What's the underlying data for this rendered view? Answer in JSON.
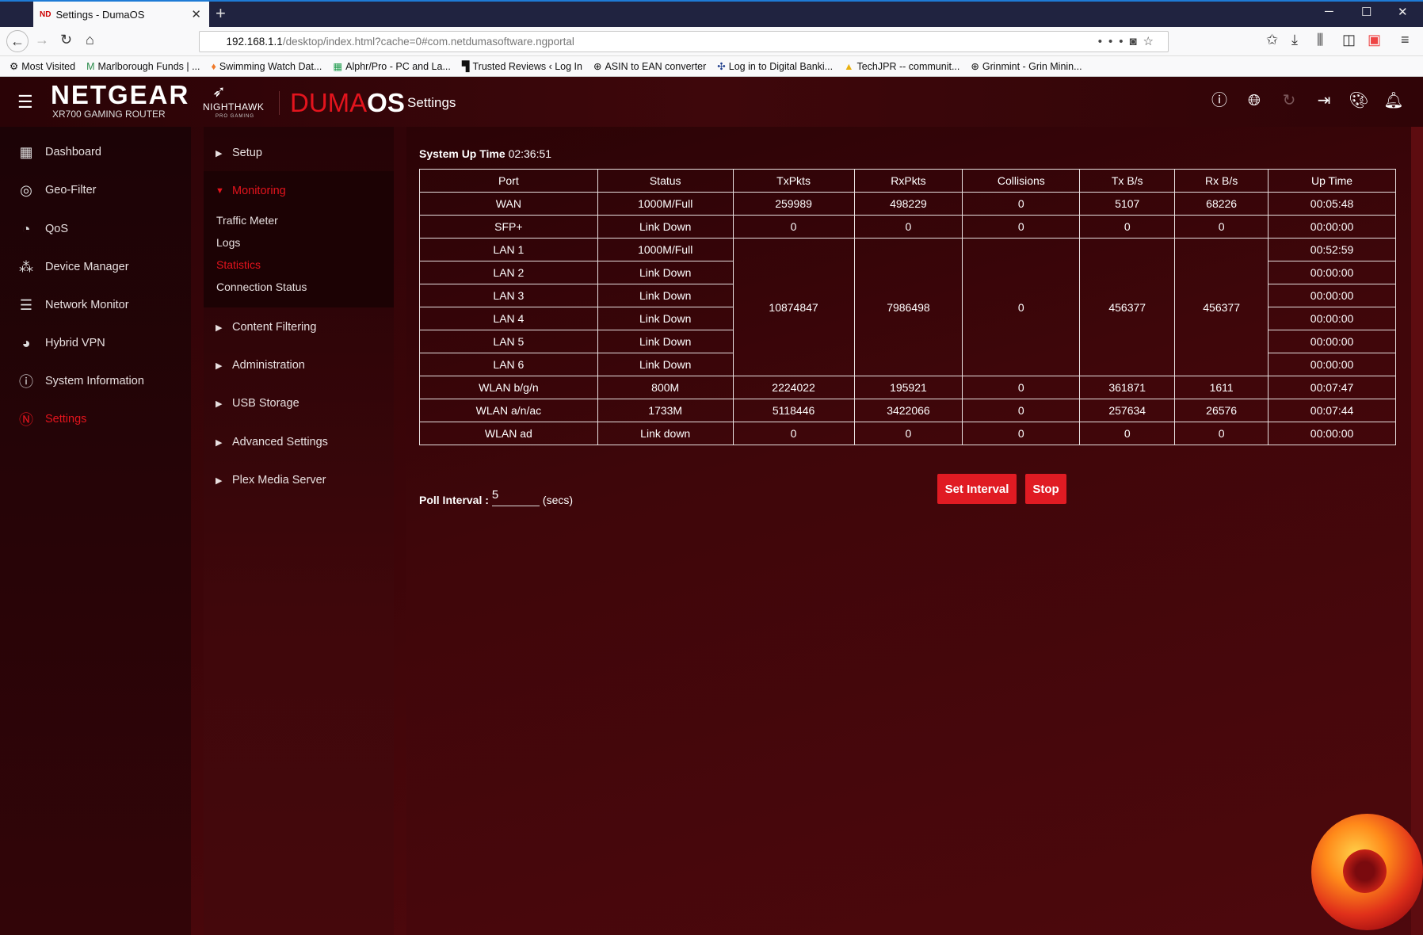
{
  "browser": {
    "tab_title": "Settings - DumaOS",
    "tab_favicon": "ND",
    "url_host": "192.168.1.1",
    "url_path": "/desktop/index.html?cache=0#com.netdumasoftware.ngportal",
    "bookmarks": [
      {
        "icon": "gear-icon",
        "label": "Most Visited"
      },
      {
        "icon": "m-logo-icon",
        "label": "Marlborough Funds | ..."
      },
      {
        "icon": "pin-icon",
        "label": "Swimming Watch Dat..."
      },
      {
        "icon": "sheet-icon",
        "label": "Alphr/Pro - PC and La..."
      },
      {
        "icon": "t-logo-icon",
        "label": "Trusted Reviews ‹ Log In"
      },
      {
        "icon": "globe-icon",
        "label": "ASIN to EAN converter"
      },
      {
        "icon": "bank-icon",
        "label": "Log in to Digital Banki..."
      },
      {
        "icon": "drive-icon",
        "label": "TechJPR -- communit..."
      },
      {
        "icon": "globe-icon",
        "label": "Grinmint - Grin Minin..."
      }
    ]
  },
  "header": {
    "brand": "NETGEAR",
    "model": "XR700 GAMING ROUTER",
    "nighthawk": "NIGHTHAWK",
    "nighthawk_sub": "PRO GAMING",
    "duma": "DUMA",
    "os": "OS",
    "title": "Settings"
  },
  "sidebar": {
    "items": [
      {
        "label": "Dashboard",
        "icon": "dashboard-icon"
      },
      {
        "label": "Geo-Filter",
        "icon": "geo-filter-icon"
      },
      {
        "label": "QoS",
        "icon": "qos-icon"
      },
      {
        "label": "Device Manager",
        "icon": "device-manager-icon"
      },
      {
        "label": "Network Monitor",
        "icon": "network-monitor-icon"
      },
      {
        "label": "Hybrid VPN",
        "icon": "hybrid-vpn-icon"
      },
      {
        "label": "System Information",
        "icon": "system-info-icon"
      },
      {
        "label": "Settings",
        "icon": "netduma-n-icon",
        "active": true
      }
    ]
  },
  "submenu": {
    "setup": "Setup",
    "monitoring": "Monitoring",
    "monitoring_items": [
      "Traffic Meter",
      "Logs",
      "Statistics",
      "Connection Status"
    ],
    "active_item": "Statistics",
    "content_filtering": "Content Filtering",
    "administration": "Administration",
    "usb_storage": "USB Storage",
    "advanced_settings": "Advanced Settings",
    "plex": "Plex Media Server"
  },
  "main": {
    "uptime_label": "System Up Time",
    "uptime_value": "02:36:51",
    "columns": [
      "Port",
      "Status",
      "TxPkts",
      "RxPkts",
      "Collisions",
      "Tx B/s",
      "Rx B/s",
      "Up Time"
    ],
    "rows": {
      "wan": [
        "WAN",
        "1000M/Full",
        "259989",
        "498229",
        "0",
        "5107",
        "68226",
        "00:05:48"
      ],
      "sfp": [
        "SFP+",
        "Link Down",
        "0",
        "0",
        "0",
        "0",
        "0",
        "00:00:00"
      ],
      "lan_shared": {
        "txpkts": "10874847",
        "rxpkts": "7986498",
        "collisions": "0",
        "txbs": "456377",
        "rxbs": "456377"
      },
      "lan": [
        {
          "port": "LAN 1",
          "status": "1000M/Full",
          "uptime": "00:52:59"
        },
        {
          "port": "LAN 2",
          "status": "Link Down",
          "uptime": "00:00:00"
        },
        {
          "port": "LAN 3",
          "status": "Link Down",
          "uptime": "00:00:00"
        },
        {
          "port": "LAN 4",
          "status": "Link Down",
          "uptime": "00:00:00"
        },
        {
          "port": "LAN 5",
          "status": "Link Down",
          "uptime": "00:00:00"
        },
        {
          "port": "LAN 6",
          "status": "Link Down",
          "uptime": "00:00:00"
        }
      ],
      "wlan_bgn": [
        "WLAN b/g/n",
        "800M",
        "2224022",
        "195921",
        "0",
        "361871",
        "1611",
        "00:07:47"
      ],
      "wlan_anac": [
        "WLAN a/n/ac",
        "1733M",
        "5118446",
        "3422066",
        "0",
        "257634",
        "26576",
        "00:07:44"
      ],
      "wlan_ad": [
        "WLAN ad",
        "Link down",
        "0",
        "0",
        "0",
        "0",
        "0",
        "00:00:00"
      ]
    },
    "poll_label": "Poll Interval :",
    "poll_value": "5",
    "poll_unit": "(secs)",
    "set_interval": "Set Interval",
    "stop": "Stop"
  },
  "colors": {
    "accent": "#e3141d",
    "button": "#e01b23",
    "background": "#3d0509"
  }
}
